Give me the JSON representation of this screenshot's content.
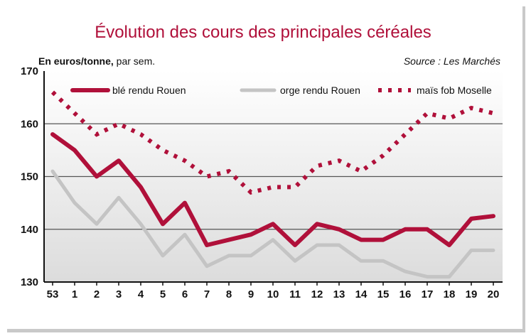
{
  "chart_data": {
    "type": "line",
    "title": "Évolution des cours des principales céréales",
    "unit_label": "En euros/tonne,",
    "unit_suffix": " par sem.",
    "source": "Source : Les Marchés",
    "categories": [
      "53",
      "1",
      "2",
      "3",
      "4",
      "5",
      "6",
      "7",
      "8",
      "9",
      "10",
      "11",
      "12",
      "13",
      "14",
      "15",
      "16",
      "17",
      "18",
      "19",
      "20"
    ],
    "ylim": [
      130,
      170
    ],
    "yticks": [
      130,
      140,
      150,
      160,
      170
    ],
    "grid": true,
    "legend_position": "top",
    "series": [
      {
        "name": "blé rendu Rouen",
        "color": "#b0103a",
        "style": "solid-thick",
        "values": [
          158,
          155,
          150,
          153,
          148,
          141,
          145,
          137,
          138,
          139,
          141,
          137,
          141,
          140,
          138,
          138,
          140,
          140,
          137,
          142,
          142.5
        ]
      },
      {
        "name": "orge rendu Rouen",
        "color": "#c4c4c4",
        "style": "solid",
        "values": [
          151,
          145,
          141,
          146,
          141,
          135,
          139,
          133,
          135,
          135,
          138,
          134,
          137,
          137,
          134,
          134,
          132,
          131,
          131,
          136,
          136
        ]
      },
      {
        "name": "maïs fob Moselle",
        "color": "#b0103a",
        "style": "dotted",
        "values": [
          166,
          162,
          158,
          160,
          158,
          155,
          153,
          150,
          151,
          147,
          148,
          148,
          152,
          153,
          151,
          154,
          158,
          162,
          161,
          163,
          162
        ]
      }
    ]
  }
}
